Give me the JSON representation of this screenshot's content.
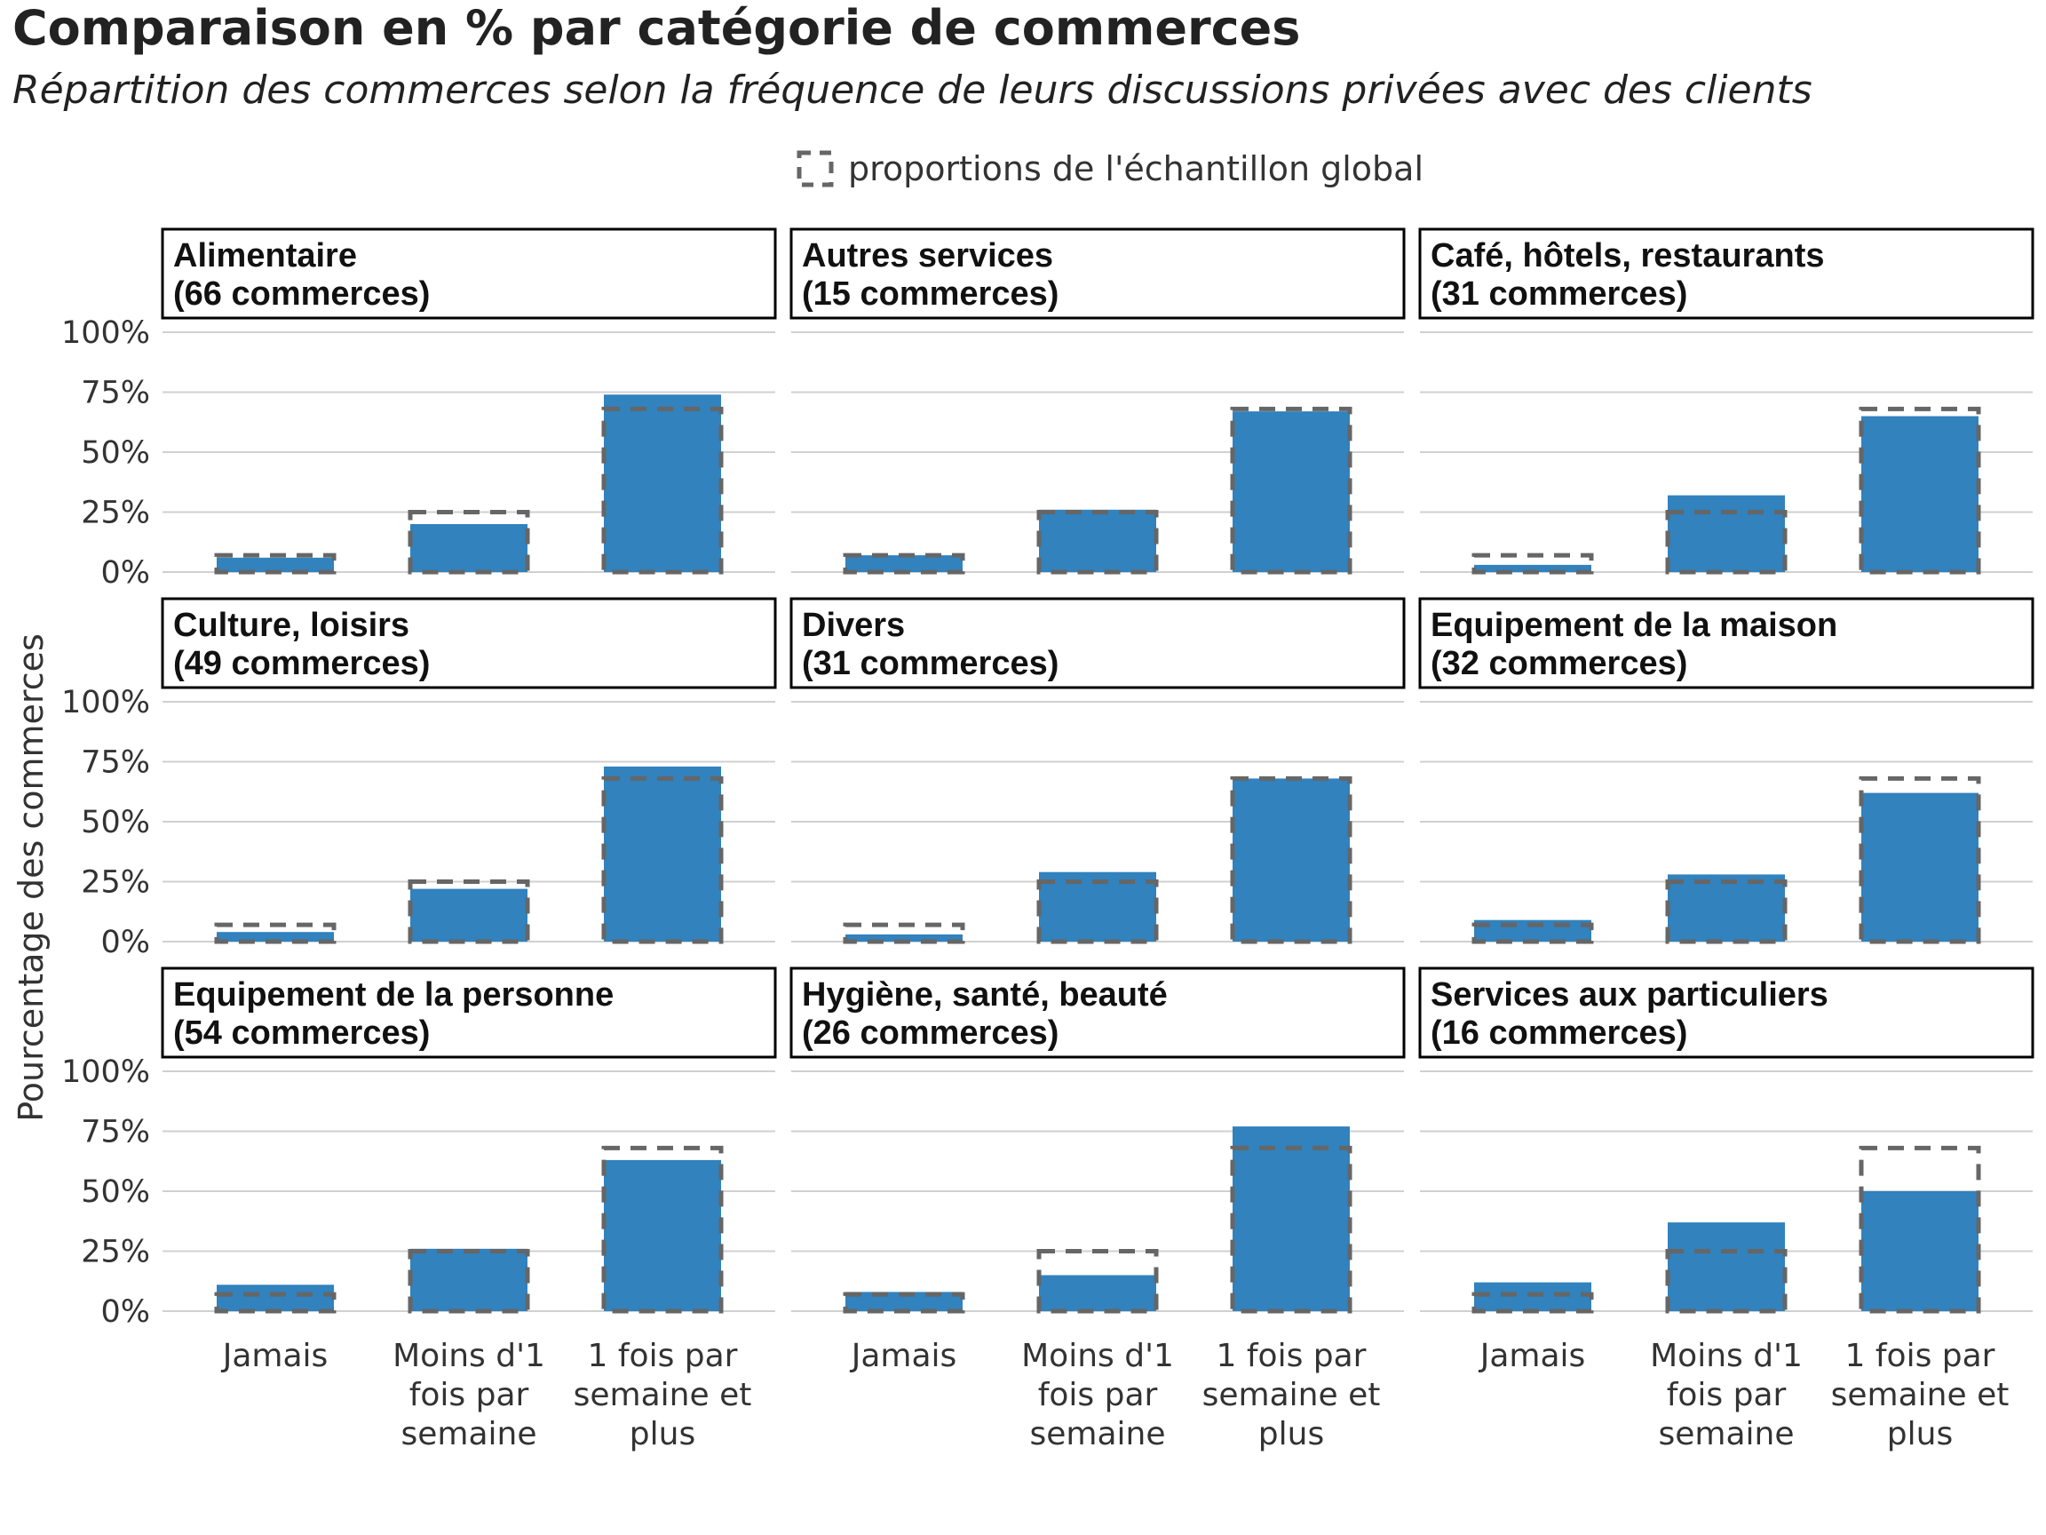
{
  "title": "Comparaison en % par catégorie de commerces",
  "subtitle": "Répartition des commerces selon la fréquence de leurs discussions privées avec des clients",
  "legend": {
    "label": "proportions de l'échantillon global",
    "position": "top"
  },
  "colors": {
    "bar": "#3182bd",
    "reference": "#666666",
    "grid": "#d0d0d0",
    "strip_border": "#000000"
  },
  "chart_data": {
    "type": "bar",
    "facet": "3x3 grid",
    "categories": [
      [
        "Jamais"
      ],
      [
        "Moins d'1",
        "fois par",
        "semaine"
      ],
      [
        "1 fois par",
        "semaine et",
        "plus"
      ]
    ],
    "ylabel": "Pourcentage des commerces",
    "ylim": [
      0,
      100
    ],
    "yticks": [
      "0%",
      "25%",
      "50%",
      "75%",
      "100%"
    ],
    "reference": [
      7,
      25,
      68
    ],
    "panels": [
      {
        "title": [
          "Alimentaire",
          "(66 commerces)"
        ],
        "values": [
          6,
          20,
          74
        ]
      },
      {
        "title": [
          "Autres services",
          "(15 commerces)"
        ],
        "values": [
          7,
          26,
          67
        ]
      },
      {
        "title": [
          "Café, hôtels, restaurants",
          "(31 commerces)"
        ],
        "values": [
          3,
          32,
          65
        ]
      },
      {
        "title": [
          "Culture, loisirs",
          "(49 commerces)"
        ],
        "values": [
          4,
          22,
          73
        ]
      },
      {
        "title": [
          "Divers",
          "(31 commerces)"
        ],
        "values": [
          3,
          29,
          68
        ]
      },
      {
        "title": [
          "Equipement de la maison",
          "(32 commerces)"
        ],
        "values": [
          9,
          28,
          62
        ]
      },
      {
        "title": [
          "Equipement de la personne",
          "(54 commerces)"
        ],
        "values": [
          11,
          26,
          63
        ]
      },
      {
        "title": [
          "Hygiène, santé, beauté",
          "(26 commerces)"
        ],
        "values": [
          8,
          15,
          77
        ]
      },
      {
        "title": [
          "Services aux particuliers",
          "(16 commerces)"
        ],
        "values": [
          12,
          37,
          50
        ]
      }
    ]
  }
}
